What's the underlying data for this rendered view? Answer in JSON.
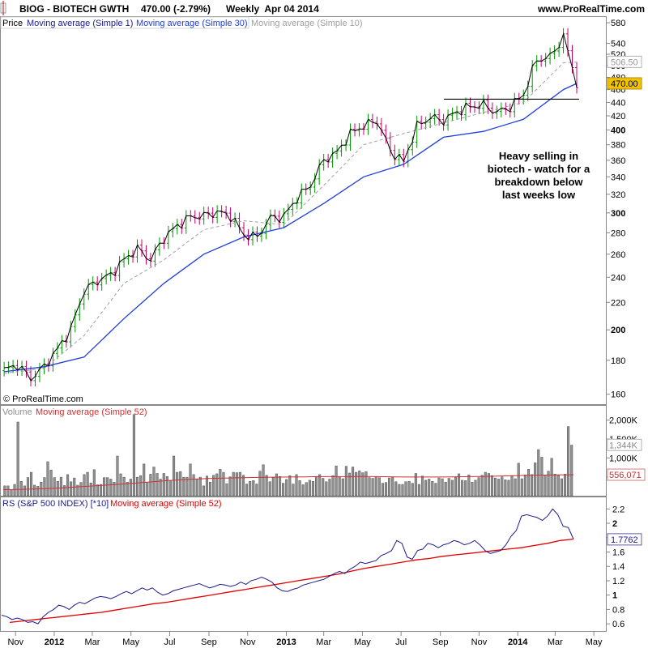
{
  "header": {
    "symbol_line": "BIOG - BIOTECH GWTH",
    "last_change": "470.00 (-2.79%)",
    "period_date": "Weekly  Apr 04 2014",
    "site": "www.ProRealTime.com"
  },
  "watermark": "© ProRealTime.com",
  "annotation": [
    "Heavy selling in",
    "biotech - watch for a",
    "breakdown below",
    "last weeks low"
  ],
  "colors": {
    "up_bar": "#009900",
    "down_bar": "#cc0066",
    "price_line": "#000000",
    "ma30": "#1f3fd8",
    "ma10": "#a0a0a0",
    "volume_bar": "#909090",
    "vol_ma": "#d03030",
    "rs_line": "#1a1a8c",
    "rs_ma": "#e00000",
    "last_price_badge": "#f2c200"
  },
  "chart_data": [
    {
      "type": "line",
      "panel": "price",
      "legend": [
        "Price",
        "Moving average (Simple 1)",
        "Moving average (Simple 30)",
        "Moving average (Simple 10)"
      ],
      "y_scale": "log",
      "ylim": [
        155,
        590
      ],
      "y_ticks": [
        "580",
        "540",
        "520",
        "500",
        "480",
        "460",
        "440",
        "420",
        "400",
        "380",
        "360",
        "340",
        "320",
        "300",
        "280",
        "260",
        "240",
        "220",
        "200",
        "180",
        "160"
      ],
      "price_badges": {
        "ma10": "506.50",
        "last": "470.00"
      },
      "resistance_line": 445,
      "series": [
        {
          "name": "Moving average (Simple 1)",
          "x": [
            "2011-10-14",
            "2011-11-04",
            "2011-11-25",
            "2011-12-16",
            "2012-01-06",
            "2012-01-27",
            "2012-02-17",
            "2012-03-09",
            "2012-03-30",
            "2012-04-20",
            "2012-05-11",
            "2012-06-01",
            "2012-06-22",
            "2012-07-13",
            "2012-08-03",
            "2012-08-24",
            "2012-09-14",
            "2012-10-05",
            "2012-10-26",
            "2012-11-16",
            "2012-12-07",
            "2012-12-28",
            "2013-01-18",
            "2013-02-08",
            "2013-03-01",
            "2013-03-22",
            "2013-04-12",
            "2013-05-03",
            "2013-05-24",
            "2013-06-14",
            "2013-07-05",
            "2013-07-26",
            "2013-08-16",
            "2013-09-06",
            "2013-09-27",
            "2013-10-18",
            "2013-11-08",
            "2013-11-29",
            "2013-12-20",
            "2014-01-10",
            "2014-01-31",
            "2014-02-21",
            "2014-03-14",
            "2014-04-04"
          ],
          "y": [
            174,
            177,
            169,
            176,
            187,
            200,
            229,
            237,
            242,
            255,
            265,
            255,
            275,
            287,
            296,
            297,
            301,
            297,
            278,
            276,
            295,
            296,
            316,
            330,
            360,
            370,
            395,
            406,
            413,
            372,
            358,
            405,
            418,
            413,
            426,
            434,
            436,
            425,
            433,
            452,
            510,
            515,
            552,
            470
          ]
        },
        {
          "name": "Moving average (Simple 30)",
          "x": [
            "2011-10-14",
            "2011-12-16",
            "2012-02-17",
            "2012-04-20",
            "2012-06-22",
            "2012-08-24",
            "2012-10-26",
            "2012-12-28",
            "2013-03-01",
            "2013-05-03",
            "2013-07-05",
            "2013-09-06",
            "2013-11-08",
            "2014-01-10",
            "2014-03-14",
            "2014-04-04"
          ],
          "y": [
            173,
            176,
            182,
            208,
            235,
            260,
            276,
            285,
            310,
            340,
            355,
            390,
            398,
            415,
            460,
            470
          ]
        },
        {
          "name": "Moving average (Simple 10)",
          "x": [
            "2011-10-14",
            "2011-12-16",
            "2012-02-17",
            "2012-04-20",
            "2012-06-22",
            "2012-08-24",
            "2012-10-26",
            "2012-12-28",
            "2013-03-01",
            "2013-05-03",
            "2013-07-05",
            "2013-09-06",
            "2013-11-08",
            "2014-01-10",
            "2014-03-14",
            "2014-04-04"
          ],
          "y": [
            172,
            175,
            196,
            235,
            255,
            283,
            292,
            288,
            330,
            380,
            395,
            410,
            425,
            440,
            505,
            506
          ]
        }
      ]
    },
    {
      "type": "bar",
      "panel": "volume",
      "legend": [
        "Volume",
        "Moving average (Simple 52)"
      ],
      "ylim": [
        0,
        2100000
      ],
      "y_ticks": [
        "2,000K",
        "1,500K",
        "1,000K",
        "500K"
      ],
      "badges": {
        "volume": "1,344K",
        "ma52": "556,071"
      },
      "values": [
        260,
        260,
        150,
        300,
        1950,
        380,
        260,
        480,
        620,
        280,
        250,
        360,
        480,
        900,
        680,
        480,
        380,
        490,
        270,
        560,
        370,
        470,
        280,
        350,
        560,
        620,
        340,
        690,
        290,
        300,
        480,
        480,
        440,
        360,
        1050,
        580,
        490,
        360,
        440,
        2150,
        490,
        530,
        840,
        360,
        570,
        760,
        590,
        440,
        590,
        510,
        400,
        1050,
        620,
        640,
        490,
        490,
        840,
        560,
        440,
        490,
        260,
        520,
        360,
        540,
        580,
        700,
        620,
        320,
        500,
        620,
        610,
        620,
        540,
        310,
        380,
        400,
        310,
        650,
        820,
        540,
        370,
        480,
        580,
        510,
        330,
        430,
        530,
        310,
        560,
        400,
        290,
        350,
        410,
        380,
        510,
        560,
        460,
        370,
        440,
        530,
        790,
        490,
        450,
        780,
        600,
        760,
        620,
        660,
        610,
        640,
        480,
        460,
        500,
        480,
        330,
        350,
        470,
        500,
        370,
        300,
        300,
        370,
        380,
        330,
        590,
        300,
        520,
        410,
        440,
        380,
        330,
        470,
        450,
        360,
        460,
        410,
        490,
        580,
        410,
        400,
        550,
        360,
        410,
        480,
        540,
        620,
        590,
        530,
        470,
        440,
        500,
        420,
        410,
        520,
        450,
        860,
        450,
        550,
        700,
        560,
        870,
        1220,
        1020,
        550,
        650,
        990,
        570,
        540,
        450,
        570,
        1830,
        1340
      ],
      "ma": [
        160,
        165,
        175,
        190,
        210,
        235,
        260,
        285,
        310,
        340,
        370,
        400,
        425,
        445,
        460,
        470,
        475,
        485,
        490,
        495,
        500,
        505,
        505,
        505,
        510,
        505,
        500,
        495,
        495,
        495,
        500,
        505,
        510,
        520,
        530,
        540,
        545,
        550,
        556
      ]
    },
    {
      "type": "line",
      "panel": "rs",
      "legend": [
        "RS (S&P 500 INDEX) [*10]",
        "Moving average (Simple 52)"
      ],
      "ylim": [
        0.5,
        2.35
      ],
      "y_ticks": [
        "2.2",
        "2",
        "1.8",
        "1.6",
        "1.4",
        "1.2",
        "1",
        "0.8",
        "0.6"
      ],
      "badge": "1.7762",
      "series": [
        {
          "name": "RS (S&P 500 INDEX) [*10]",
          "values": [
            0.72,
            0.7,
            0.66,
            0.68,
            0.66,
            0.62,
            0.63,
            0.6,
            0.7,
            0.76,
            0.8,
            0.86,
            0.84,
            0.8,
            0.86,
            0.9,
            0.88,
            0.92,
            0.96,
            0.98,
            0.97,
            0.95,
            0.98,
            1.02,
            1.05,
            1.02,
            1.06,
            1.1,
            1.07,
            1.1,
            1.04,
            1.0,
            1.02,
            1.06,
            1.08,
            1.1,
            1.12,
            1.14,
            1.16,
            1.13,
            1.1,
            1.12,
            1.15,
            1.14,
            1.12,
            1.14,
            1.18,
            1.15,
            1.2,
            1.22,
            1.25,
            1.22,
            1.18,
            1.1,
            1.06,
            1.05,
            1.08,
            1.1,
            1.14,
            1.16,
            1.18,
            1.2,
            1.22,
            1.26,
            1.3,
            1.33,
            1.3,
            1.36,
            1.4,
            1.46,
            1.44,
            1.46,
            1.48,
            1.55,
            1.58,
            1.62,
            1.76,
            1.72,
            1.53,
            1.5,
            1.62,
            1.64,
            1.72,
            1.7,
            1.66,
            1.7,
            1.72,
            1.76,
            1.74,
            1.7,
            1.72,
            1.76,
            1.7,
            1.62,
            1.58,
            1.6,
            1.62,
            1.7,
            1.82,
            1.9,
            2.1,
            2.12,
            2.1,
            2.08,
            2.04,
            2.1,
            2.2,
            2.12,
            1.96,
            1.94,
            1.78
          ]
        },
        {
          "name": "Moving average (Simple 52)",
          "values": [
            0.62,
            0.64,
            0.66,
            0.68,
            0.7,
            0.72,
            0.74,
            0.76,
            0.79,
            0.82,
            0.85,
            0.88,
            0.9,
            0.93,
            0.96,
            0.99,
            1.02,
            1.05,
            1.08,
            1.11,
            1.14,
            1.17,
            1.2,
            1.23,
            1.26,
            1.29,
            1.33,
            1.37,
            1.4,
            1.43,
            1.46,
            1.49,
            1.51,
            1.54,
            1.56,
            1.58,
            1.6,
            1.62,
            1.64,
            1.66,
            1.69,
            1.72,
            1.76,
            1.78
          ]
        }
      ]
    }
  ],
  "x_axis": {
    "labels": [
      {
        "text": "Nov",
        "date": "2011-11-01",
        "bold": false
      },
      {
        "text": "2012",
        "date": "2012-01-01",
        "bold": true
      },
      {
        "text": "Mar",
        "date": "2012-03-01",
        "bold": false
      },
      {
        "text": "May",
        "date": "2012-05-01",
        "bold": false
      },
      {
        "text": "Jul",
        "date": "2012-07-01",
        "bold": false
      },
      {
        "text": "Sep",
        "date": "2012-09-01",
        "bold": false
      },
      {
        "text": "Nov",
        "date": "2012-11-01",
        "bold": false
      },
      {
        "text": "2013",
        "date": "2013-01-01",
        "bold": true
      },
      {
        "text": "Mar",
        "date": "2013-03-01",
        "bold": false
      },
      {
        "text": "May",
        "date": "2013-05-01",
        "bold": false
      },
      {
        "text": "Jul",
        "date": "2013-07-01",
        "bold": false
      },
      {
        "text": "Sep",
        "date": "2013-09-01",
        "bold": false
      },
      {
        "text": "Nov",
        "date": "2013-11-01",
        "bold": false
      },
      {
        "text": "2014",
        "date": "2014-01-01",
        "bold": true
      },
      {
        "text": "Mar",
        "date": "2014-03-01",
        "bold": false
      },
      {
        "text": "May",
        "date": "2014-05-01",
        "bold": false
      }
    ],
    "range": [
      "2011-10-10",
      "2014-05-20"
    ]
  }
}
